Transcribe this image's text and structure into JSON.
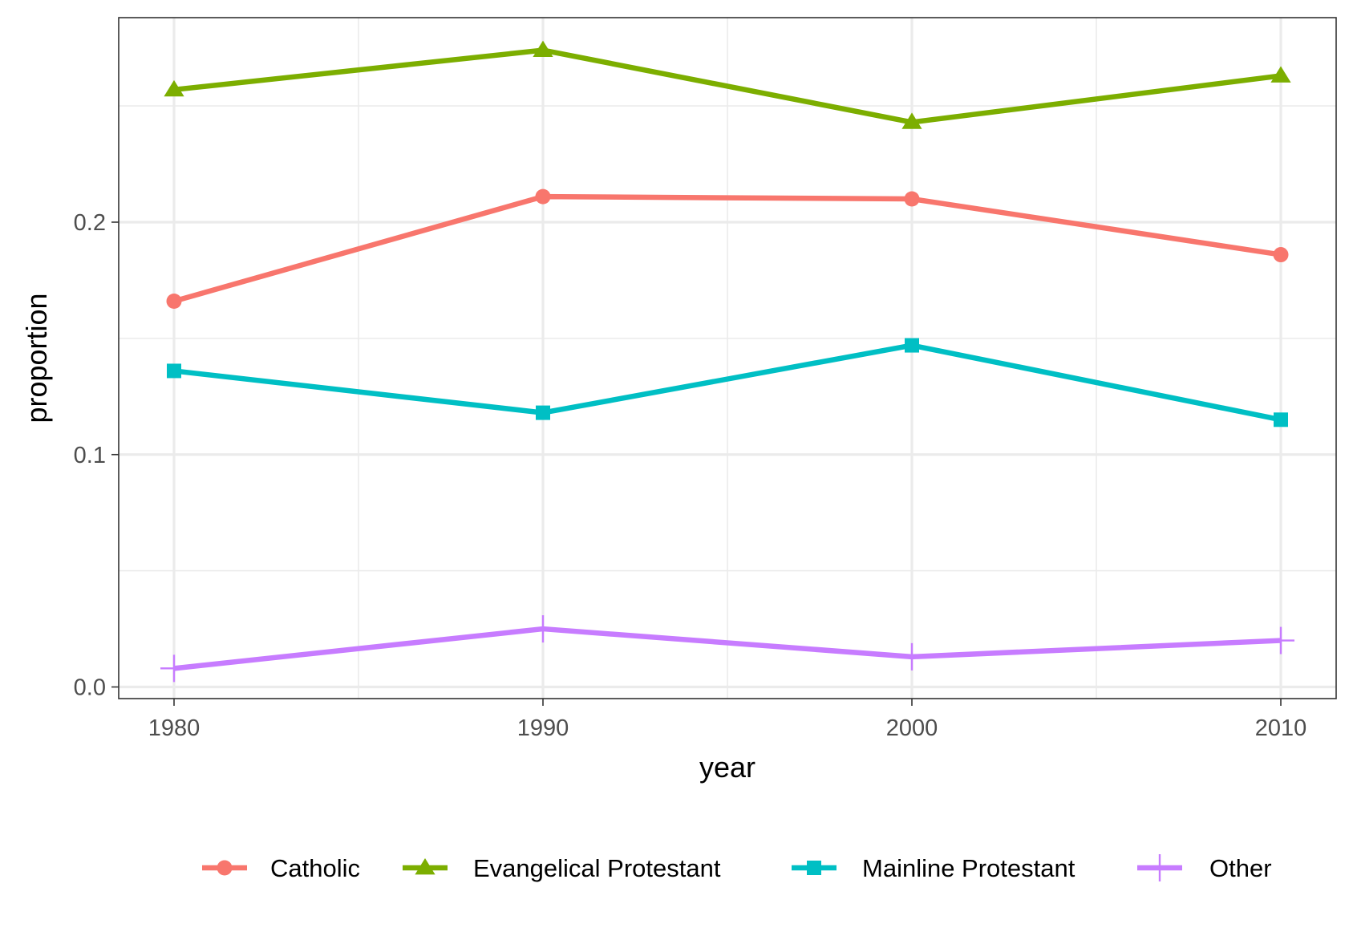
{
  "chart_data": {
    "type": "line",
    "title": "",
    "xlabel": "year",
    "ylabel": "proportion",
    "x": [
      1980,
      1990,
      2000,
      2010
    ],
    "xlim": [
      1978.5,
      2011.5
    ],
    "ylim": [
      -0.005,
      0.288
    ],
    "x_ticks": [
      1980,
      1990,
      2000,
      2010
    ],
    "x_tick_labels": [
      "1980",
      "1990",
      "2000",
      "2010"
    ],
    "y_ticks": [
      0.0,
      0.1,
      0.2
    ],
    "y_tick_labels": [
      "0.0",
      "0.1",
      "0.2"
    ],
    "grid": true,
    "legend_position": "bottom",
    "series": [
      {
        "name": "Catholic",
        "color": "#F8766D",
        "marker": "circle",
        "values": [
          0.166,
          0.211,
          0.21,
          0.186
        ]
      },
      {
        "name": "Evangelical Protestant",
        "color": "#7CAE00",
        "marker": "triangle",
        "values": [
          0.257,
          0.274,
          0.243,
          0.263
        ]
      },
      {
        "name": "Mainline Protestant",
        "color": "#00BFC4",
        "marker": "square",
        "values": [
          0.136,
          0.118,
          0.147,
          0.115
        ]
      },
      {
        "name": "Other",
        "color": "#C77CFF",
        "marker": "plus",
        "values": [
          0.008,
          0.025,
          0.013,
          0.02
        ]
      }
    ]
  }
}
